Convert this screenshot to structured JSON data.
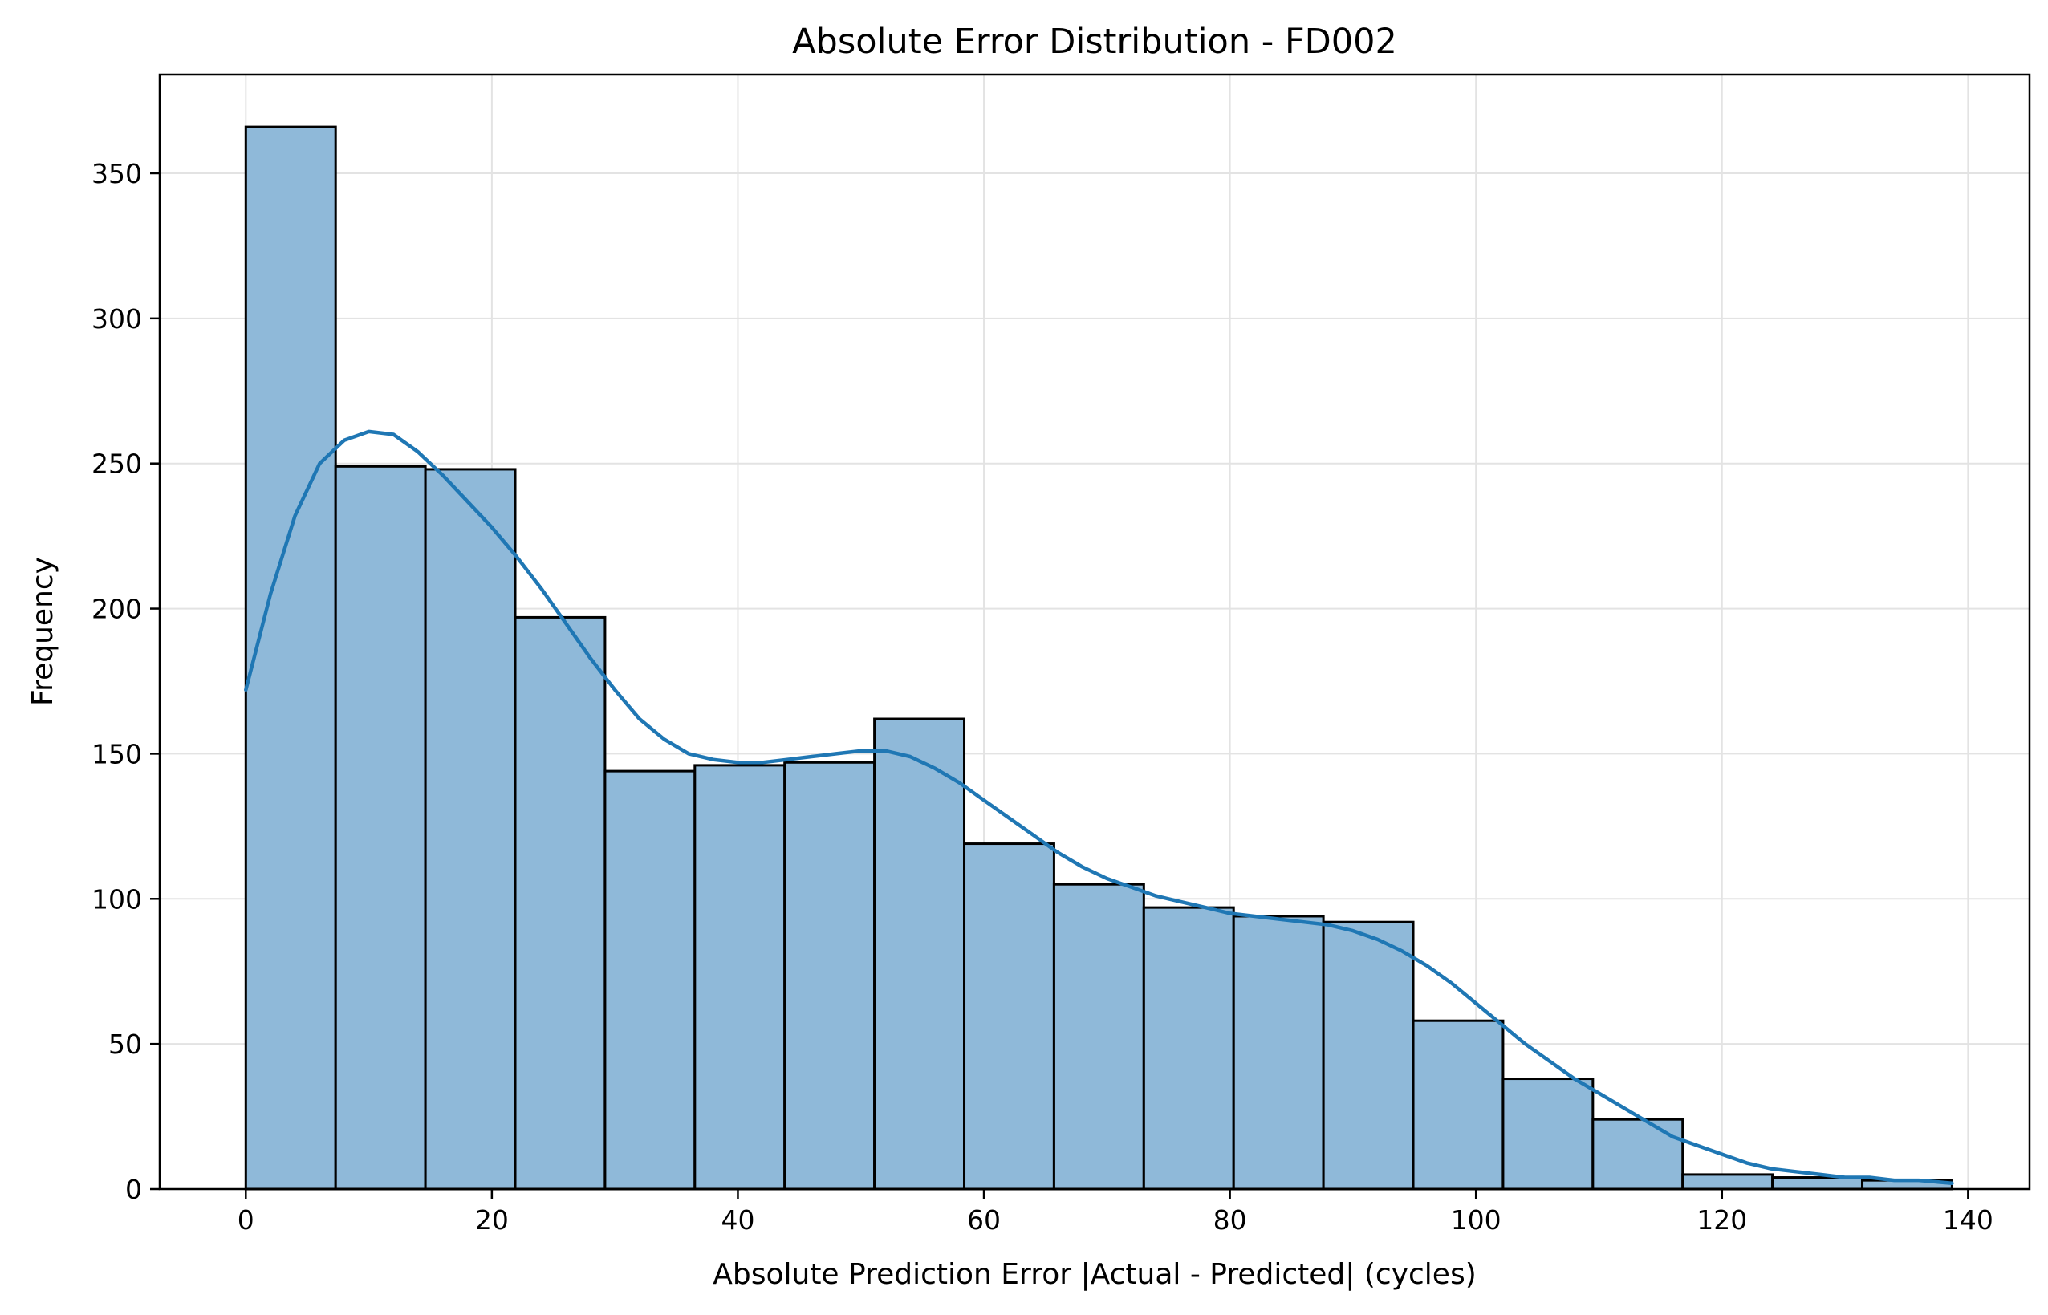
{
  "chart_data": {
    "type": "bar",
    "subtype": "histogram",
    "title": "Absolute Error Distribution - FD002",
    "xlabel": "Absolute Prediction Error |Actual - Predicted| (cycles)",
    "ylabel": "Frequency",
    "xlim": [
      -7,
      145
    ],
    "ylim": [
      0,
      384
    ],
    "x_ticks": [
      0,
      20,
      40,
      60,
      80,
      100,
      120,
      140
    ],
    "y_ticks": [
      0,
      50,
      100,
      150,
      200,
      250,
      300,
      350
    ],
    "grid": true,
    "bar_color": "#8fb9d9",
    "bar_edge_color": "#000000",
    "kde_color": "#1f77b4",
    "bins": [
      {
        "start": 0.0,
        "end": 7.3,
        "count": 366
      },
      {
        "start": 7.3,
        "end": 14.6,
        "count": 249
      },
      {
        "start": 14.6,
        "end": 21.9,
        "count": 248
      },
      {
        "start": 21.9,
        "end": 29.2,
        "count": 197
      },
      {
        "start": 29.2,
        "end": 36.5,
        "count": 144
      },
      {
        "start": 36.5,
        "end": 43.8,
        "count": 146
      },
      {
        "start": 43.8,
        "end": 51.1,
        "count": 147
      },
      {
        "start": 51.1,
        "end": 58.4,
        "count": 162
      },
      {
        "start": 58.4,
        "end": 65.7,
        "count": 119
      },
      {
        "start": 65.7,
        "end": 73.0,
        "count": 105
      },
      {
        "start": 73.0,
        "end": 80.3,
        "count": 97
      },
      {
        "start": 80.3,
        "end": 87.6,
        "count": 94
      },
      {
        "start": 87.6,
        "end": 94.9,
        "count": 92
      },
      {
        "start": 94.9,
        "end": 102.2,
        "count": 58
      },
      {
        "start": 102.2,
        "end": 109.5,
        "count": 38
      },
      {
        "start": 109.5,
        "end": 116.8,
        "count": 24
      },
      {
        "start": 116.8,
        "end": 124.1,
        "count": 5
      },
      {
        "start": 124.1,
        "end": 131.4,
        "count": 4
      },
      {
        "start": 131.4,
        "end": 138.7,
        "count": 3
      }
    ],
    "kde": {
      "x": [
        0,
        2,
        4,
        6,
        8,
        10,
        12,
        14,
        16,
        18,
        20,
        22,
        24,
        26,
        28,
        30,
        32,
        34,
        36,
        38,
        40,
        42,
        44,
        46,
        48,
        50,
        52,
        54,
        56,
        58,
        60,
        62,
        64,
        66,
        68,
        70,
        72,
        74,
        76,
        78,
        80,
        82,
        84,
        86,
        88,
        90,
        92,
        94,
        96,
        98,
        100,
        102,
        104,
        106,
        108,
        110,
        112,
        114,
        116,
        118,
        120,
        122,
        124,
        126,
        128,
        130,
        132,
        134,
        136,
        138.7
      ],
      "y": [
        172,
        205,
        232,
        250,
        258,
        261,
        260,
        254,
        246,
        237,
        228,
        218,
        207,
        195,
        183,
        172,
        162,
        155,
        150,
        148,
        147,
        147,
        148,
        149,
        150,
        151,
        151,
        149,
        145,
        140,
        134,
        128,
        122,
        116,
        111,
        107,
        104,
        101,
        99,
        97,
        95,
        94,
        93,
        92,
        91,
        89,
        86,
        82,
        77,
        71,
        64,
        57,
        50,
        44,
        38,
        33,
        28,
        23,
        18,
        15,
        12,
        9,
        7,
        6,
        5,
        4,
        4,
        3,
        3,
        2
      ]
    }
  }
}
